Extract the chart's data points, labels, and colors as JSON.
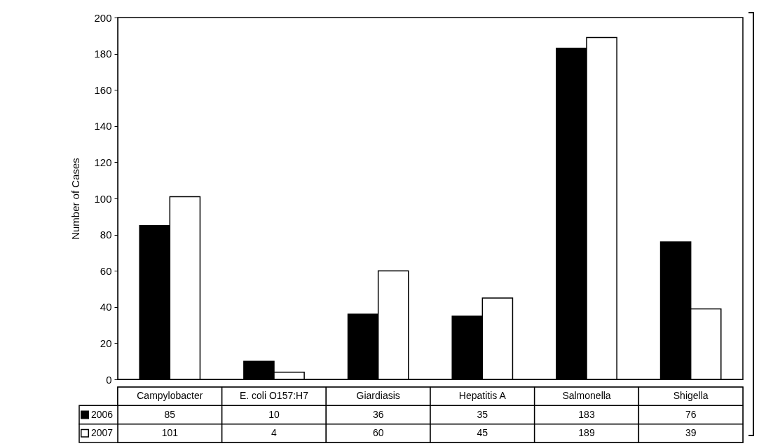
{
  "chart_data": {
    "type": "bar",
    "ylabel": "Number of Cases",
    "categories": [
      "Campylobacter",
      "E. coli O157:H7",
      "Giardiasis",
      "Hepatitis A",
      "Salmonella",
      "Shigella"
    ],
    "series": [
      {
        "name": "2006",
        "color": "#000000",
        "values": [
          85,
          10,
          36,
          35,
          183,
          76
        ]
      },
      {
        "name": "2007",
        "color": "#ffffff",
        "values": [
          101,
          4,
          60,
          45,
          189,
          39
        ]
      }
    ],
    "ylim": [
      0,
      200
    ],
    "yticks": [
      0,
      20,
      40,
      60,
      80,
      100,
      120,
      140,
      160,
      180,
      200
    ],
    "grid": false,
    "legend": "bottom left",
    "data_labels": true
  }
}
